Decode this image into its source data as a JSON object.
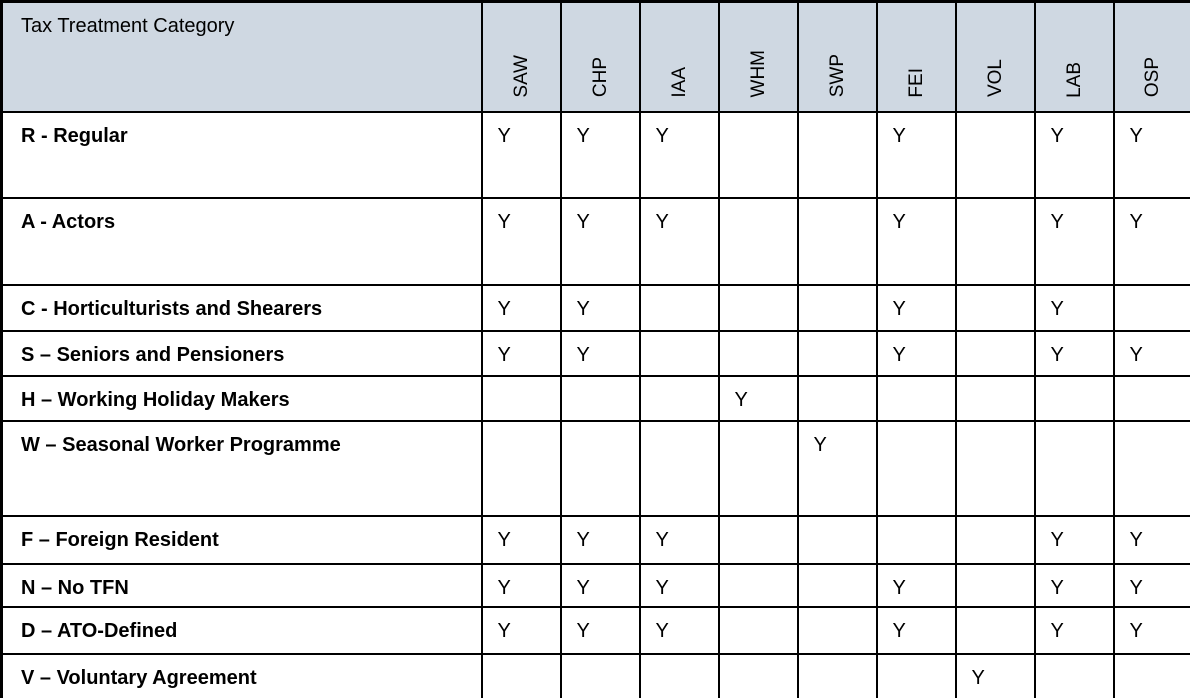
{
  "table": {
    "corner_header": "Tax Treatment Category",
    "columns": [
      "SAW",
      "CHP",
      "IAA",
      "WHM",
      "SWP",
      "FEI",
      "VOL",
      "LAB",
      "OSP"
    ],
    "yes_marker": "Y",
    "rows": [
      {
        "label": "R - Regular",
        "values": [
          "Y",
          "Y",
          "Y",
          "",
          "",
          "Y",
          "",
          "Y",
          "Y"
        ]
      },
      {
        "label": "A - Actors",
        "values": [
          "Y",
          "Y",
          "Y",
          "",
          "",
          "Y",
          "",
          "Y",
          "Y"
        ]
      },
      {
        "label": "C - Horticulturists and Shearers",
        "values": [
          "Y",
          "Y",
          "",
          "",
          "",
          "Y",
          "",
          "Y",
          ""
        ]
      },
      {
        "label": "S – Seniors and Pensioners",
        "values": [
          "Y",
          "Y",
          "",
          "",
          "",
          "Y",
          "",
          "Y",
          "Y"
        ]
      },
      {
        "label": "H – Working Holiday Makers",
        "values": [
          "",
          "",
          "",
          "Y",
          "",
          "",
          "",
          "",
          ""
        ]
      },
      {
        "label": "W – Seasonal Worker Programme",
        "values": [
          "",
          "",
          "",
          "",
          "Y",
          "",
          "",
          "",
          ""
        ]
      },
      {
        "label": "F – Foreign Resident",
        "values": [
          "Y",
          "Y",
          "Y",
          "",
          "",
          "",
          "",
          "Y",
          "Y"
        ]
      },
      {
        "label": "N – No TFN",
        "values": [
          "Y",
          "Y",
          "Y",
          "",
          "",
          "Y",
          "",
          "Y",
          "Y"
        ]
      },
      {
        "label": "D – ATO-Defined",
        "values": [
          "Y",
          "Y",
          "Y",
          "",
          "",
          "Y",
          "",
          "Y",
          "Y"
        ]
      },
      {
        "label": "V – Voluntary Agreement",
        "values": [
          "",
          "",
          "",
          "",
          "",
          "",
          "Y",
          "",
          ""
        ]
      }
    ],
    "colors": {
      "header_bg": "#cfd8e2",
      "border": "#000000",
      "text": "#000000",
      "body_bg": "#ffffff"
    }
  }
}
